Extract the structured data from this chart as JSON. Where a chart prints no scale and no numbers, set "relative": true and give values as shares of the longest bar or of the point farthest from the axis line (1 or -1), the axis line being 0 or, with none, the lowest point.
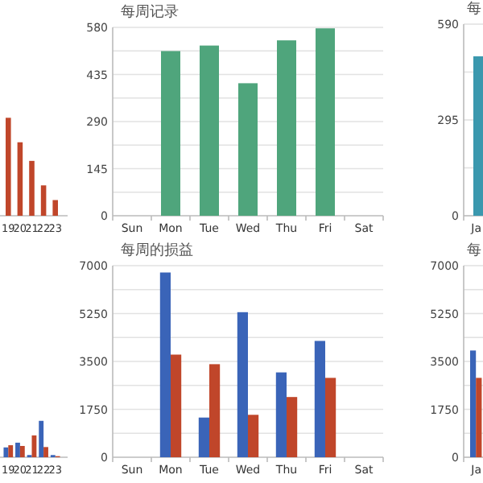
{
  "chart_data": [
    {
      "type": "bar",
      "relative": true,
      "categories": [
        "19",
        "20",
        "21",
        "22",
        "23"
      ],
      "series": [
        {
          "color": "#c0462a",
          "values": [
            1,
            0.75,
            0.56,
            0.31,
            0.16
          ]
        }
      ]
    },
    {
      "type": "bar",
      "title": "每周记录",
      "categories": [
        "Sun",
        "Mon",
        "Tue",
        "Wed",
        "Thu",
        "Fri",
        "Sat"
      ],
      "series": [
        {
          "color": "#4fa57c",
          "values": [
            null,
            507,
            524,
            408,
            540,
            577,
            null
          ]
        }
      ],
      "ylim": [
        0,
        580
      ],
      "yticks": [
        0,
        145,
        290,
        435,
        580
      ],
      "grid": true
    },
    {
      "type": "bar",
      "title": "每",
      "categories": [
        "Ja"
      ],
      "series": [
        {
          "color": "#3b98ae",
          "values": [
            491
          ]
        }
      ],
      "ylim": [
        0,
        590
      ],
      "yticks": [
        0,
        295,
        590
      ],
      "grid": true
    },
    {
      "type": "bar",
      "relative": true,
      "categories": [
        "19",
        "20",
        "21",
        "22",
        "23"
      ],
      "series": [
        {
          "color": "#3a64b8",
          "values": [
            0.27,
            0.4,
            0.06,
            1,
            0.06
          ]
        },
        {
          "color": "#c0462a",
          "values": [
            0.33,
            0.31,
            0.6,
            0.28,
            0.03
          ]
        }
      ]
    },
    {
      "type": "bar",
      "title": "每周的损益",
      "categories": [
        "Sun",
        "Mon",
        "Tue",
        "Wed",
        "Thu",
        "Fri",
        "Sat"
      ],
      "series": [
        {
          "color": "#3a64b8",
          "values": [
            null,
            6750,
            1450,
            5300,
            3100,
            4250,
            null
          ]
        },
        {
          "color": "#c0462a",
          "values": [
            null,
            3750,
            3400,
            1550,
            2200,
            2900,
            null
          ]
        }
      ],
      "ylim": [
        0,
        7000
      ],
      "yticks": [
        0,
        1750,
        3500,
        5250,
        7000
      ],
      "grid": true
    },
    {
      "type": "bar",
      "title": "每",
      "categories": [
        "Ja"
      ],
      "series": [
        {
          "color": "#3a64b8",
          "values": [
            3900
          ]
        },
        {
          "color": "#c0462a",
          "values": [
            2900
          ]
        }
      ],
      "ylim": [
        0,
        7000
      ],
      "yticks": [
        0,
        1750,
        3500,
        5250,
        7000
      ],
      "grid": true
    }
  ]
}
